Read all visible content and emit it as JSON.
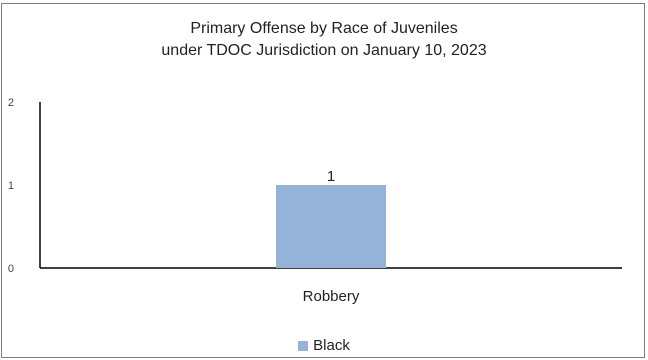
{
  "chart_data": {
    "type": "bar",
    "title": [
      "Primary Offense by Race of Juveniles",
      "under TDOC Jurisdiction on January 10, 2023"
    ],
    "categories": [
      "Robbery"
    ],
    "series": [
      {
        "name": "Black",
        "values": [
          1
        ],
        "color": "#95b3d7"
      }
    ],
    "ylim": [
      0,
      2
    ],
    "yticks": [
      0,
      1,
      2
    ],
    "data_labels": true,
    "grid": false,
    "legend_position": "bottom"
  }
}
